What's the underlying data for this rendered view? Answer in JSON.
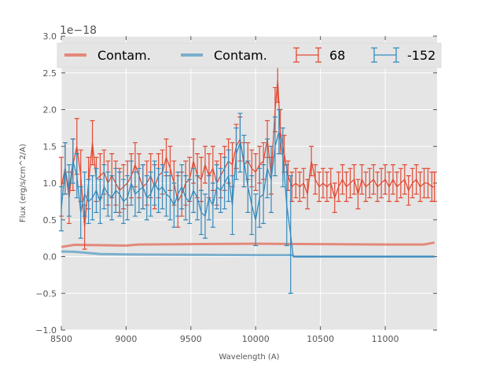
{
  "chart_data": {
    "type": "line",
    "xlabel": "Wavelength (A)",
    "ylabel": "Flux (erg/s/cm^2/A)",
    "offset_text": "1e−18",
    "xlim": [
      8500,
      11400
    ],
    "ylim": [
      -1.0,
      3.0
    ],
    "xticks": [
      "8500",
      "9000",
      "9500",
      "10000",
      "10500",
      "11000"
    ],
    "xtick_values": [
      8500,
      9000,
      9500,
      10000,
      10500,
      11000
    ],
    "yticks": [
      "−1.0",
      "−0.5",
      "0.0",
      "0.5",
      "1.0",
      "1.5",
      "2.0",
      "2.5",
      "3.0"
    ],
    "ytick_values": [
      -1.0,
      -0.5,
      0.0,
      0.5,
      1.0,
      1.5,
      2.0,
      2.5,
      3.0
    ],
    "grid": true,
    "legend_position": "top",
    "legend": [
      "Contam.",
      "Contam.",
      "68",
      "-152"
    ],
    "colors": {
      "red": "#e24a33",
      "blue": "#348abd",
      "bg": "#e5e5e5"
    },
    "series": [
      {
        "name": "Contam.",
        "kind": "contam",
        "color": "#e24a33",
        "points": [
          [
            8500,
            0.13
          ],
          [
            8600,
            0.16
          ],
          [
            8800,
            0.155
          ],
          [
            9000,
            0.15
          ],
          [
            9100,
            0.165
          ],
          [
            9500,
            0.17
          ],
          [
            10000,
            0.175
          ],
          [
            10500,
            0.17
          ],
          [
            11000,
            0.165
          ],
          [
            11300,
            0.165
          ],
          [
            11380,
            0.19
          ]
        ]
      },
      {
        "name": "Contam.",
        "kind": "contam",
        "color": "#348abd",
        "points": [
          [
            8500,
            0.07
          ],
          [
            8600,
            0.065
          ],
          [
            8700,
            0.05
          ],
          [
            8800,
            0.035
          ],
          [
            9000,
            0.03
          ],
          [
            9500,
            0.025
          ],
          [
            10000,
            0.02
          ],
          [
            10280,
            0.02
          ],
          [
            10300,
            0.0
          ],
          [
            11380,
            0.0
          ]
        ]
      },
      {
        "name": "68",
        "kind": "errorbar",
        "color": "#e24a33",
        "points": [
          [
            8500,
            0.95,
            0.4
          ],
          [
            8530,
            1.2,
            0.35
          ],
          [
            8560,
            0.8,
            0.35
          ],
          [
            8590,
            1.25,
            0.35
          ],
          [
            8620,
            1.5,
            0.38
          ],
          [
            8650,
            1.1,
            0.35
          ],
          [
            8680,
            0.4,
            0.3
          ],
          [
            8710,
            1.0,
            0.35
          ],
          [
            8740,
            1.55,
            0.3
          ],
          [
            8770,
            1.05,
            0.3
          ],
          [
            8800,
            1.1,
            0.3
          ],
          [
            8830,
            1.15,
            0.3
          ],
          [
            8860,
            1.0,
            0.3
          ],
          [
            8890,
            1.1,
            0.3
          ],
          [
            8920,
            1.0,
            0.3
          ],
          [
            8950,
            0.9,
            0.3
          ],
          [
            8980,
            0.95,
            0.3
          ],
          [
            9010,
            1.0,
            0.3
          ],
          [
            9040,
            1.1,
            0.3
          ],
          [
            9070,
            1.25,
            0.3
          ],
          [
            9100,
            1.1,
            0.3
          ],
          [
            9130,
            0.95,
            0.3
          ],
          [
            9160,
            1.0,
            0.3
          ],
          [
            9190,
            1.1,
            0.3
          ],
          [
            9220,
            0.95,
            0.3
          ],
          [
            9250,
            1.1,
            0.3
          ],
          [
            9280,
            1.15,
            0.3
          ],
          [
            9310,
            1.35,
            0.25
          ],
          [
            9340,
            1.2,
            0.3
          ],
          [
            9370,
            1.0,
            0.3
          ],
          [
            9400,
            0.75,
            0.35
          ],
          [
            9430,
            0.85,
            0.3
          ],
          [
            9460,
            1.0,
            0.3
          ],
          [
            9490,
            1.05,
            0.3
          ],
          [
            9520,
            1.3,
            0.3
          ],
          [
            9550,
            1.1,
            0.3
          ],
          [
            9580,
            1.05,
            0.3
          ],
          [
            9610,
            1.25,
            0.25
          ],
          [
            9640,
            1.1,
            0.3
          ],
          [
            9670,
            1.2,
            0.3
          ],
          [
            9700,
            1.0,
            0.3
          ],
          [
            9730,
            1.1,
            0.3
          ],
          [
            9760,
            1.2,
            0.3
          ],
          [
            9790,
            1.3,
            0.3
          ],
          [
            9820,
            1.25,
            0.3
          ],
          [
            9850,
            1.5,
            0.3
          ],
          [
            9880,
            1.6,
            0.3
          ],
          [
            9910,
            1.25,
            0.3
          ],
          [
            9940,
            1.3,
            0.25
          ],
          [
            9970,
            1.2,
            0.25
          ],
          [
            10000,
            1.15,
            0.25
          ],
          [
            10030,
            1.25,
            0.25
          ],
          [
            10060,
            1.3,
            0.25
          ],
          [
            10090,
            1.6,
            0.25
          ],
          [
            10120,
            1.1,
            0.25
          ],
          [
            10150,
            2.0,
            0.3
          ],
          [
            10170,
            2.4,
            0.3
          ],
          [
            10190,
            1.7,
            0.3
          ],
          [
            10220,
            1.4,
            0.25
          ],
          [
            10250,
            1.1,
            0.2
          ],
          [
            10280,
            0.95,
            0.2
          ],
          [
            10310,
            1.0,
            0.2
          ],
          [
            10340,
            0.95,
            0.2
          ],
          [
            10370,
            1.0,
            0.2
          ],
          [
            10400,
            0.85,
            0.2
          ],
          [
            10430,
            1.3,
            0.2
          ],
          [
            10460,
            1.05,
            0.2
          ],
          [
            10490,
            0.95,
            0.2
          ],
          [
            10520,
            1.0,
            0.2
          ],
          [
            10550,
            0.95,
            0.2
          ],
          [
            10580,
            1.0,
            0.2
          ],
          [
            10610,
            0.8,
            0.2
          ],
          [
            10640,
            0.95,
            0.2
          ],
          [
            10670,
            1.05,
            0.2
          ],
          [
            10700,
            0.95,
            0.2
          ],
          [
            10730,
            1.0,
            0.2
          ],
          [
            10760,
            1.05,
            0.2
          ],
          [
            10790,
            0.85,
            0.2
          ],
          [
            10820,
            1.05,
            0.2
          ],
          [
            10850,
            0.95,
            0.2
          ],
          [
            10880,
            1.0,
            0.2
          ],
          [
            10910,
            1.05,
            0.2
          ],
          [
            10940,
            0.95,
            0.2
          ],
          [
            10970,
            1.0,
            0.2
          ],
          [
            11000,
            1.05,
            0.2
          ],
          [
            11030,
            0.95,
            0.2
          ],
          [
            11060,
            1.05,
            0.2
          ],
          [
            11090,
            0.95,
            0.2
          ],
          [
            11120,
            1.0,
            0.2
          ],
          [
            11150,
            1.05,
            0.2
          ],
          [
            11180,
            0.9,
            0.2
          ],
          [
            11210,
            1.0,
            0.2
          ],
          [
            11240,
            1.05,
            0.2
          ],
          [
            11270,
            0.95,
            0.2
          ],
          [
            11300,
            1.0,
            0.2
          ],
          [
            11330,
            1.0,
            0.2
          ],
          [
            11360,
            0.95,
            0.2
          ],
          [
            11380,
            0.95,
            0.2
          ]
        ]
      },
      {
        "name": "-152",
        "kind": "errorbar",
        "color": "#348abd",
        "points": [
          [
            8500,
            0.65,
            0.3
          ],
          [
            8530,
            1.2,
            0.35
          ],
          [
            8560,
            0.9,
            0.35
          ],
          [
            8590,
            1.3,
            0.3
          ],
          [
            8620,
            1.1,
            0.3
          ],
          [
            8650,
            0.6,
            0.35
          ],
          [
            8680,
            0.85,
            0.3
          ],
          [
            8710,
            0.75,
            0.3
          ],
          [
            8740,
            0.8,
            0.3
          ],
          [
            8770,
            0.9,
            0.3
          ],
          [
            8800,
            0.75,
            0.3
          ],
          [
            8830,
            0.95,
            0.3
          ],
          [
            8860,
            0.85,
            0.3
          ],
          [
            8890,
            0.8,
            0.3
          ],
          [
            8920,
            0.9,
            0.3
          ],
          [
            8950,
            0.85,
            0.3
          ],
          [
            8980,
            0.75,
            0.3
          ],
          [
            9010,
            0.8,
            0.3
          ],
          [
            9040,
            1.0,
            0.3
          ],
          [
            9070,
            0.85,
            0.3
          ],
          [
            9100,
            0.9,
            0.3
          ],
          [
            9130,
            0.95,
            0.3
          ],
          [
            9160,
            0.8,
            0.3
          ],
          [
            9190,
            0.85,
            0.3
          ],
          [
            9220,
            1.0,
            0.3
          ],
          [
            9250,
            0.9,
            0.3
          ],
          [
            9280,
            0.95,
            0.3
          ],
          [
            9310,
            0.85,
            0.3
          ],
          [
            9340,
            0.8,
            0.3
          ],
          [
            9370,
            0.7,
            0.3
          ],
          [
            9400,
            0.85,
            0.3
          ],
          [
            9430,
            0.95,
            0.3
          ],
          [
            9460,
            0.8,
            0.3
          ],
          [
            9490,
            0.75,
            0.3
          ],
          [
            9520,
            0.9,
            0.3
          ],
          [
            9550,
            0.8,
            0.3
          ],
          [
            9580,
            0.6,
            0.3
          ],
          [
            9610,
            0.55,
            0.3
          ],
          [
            9640,
            0.8,
            0.3
          ],
          [
            9670,
            0.7,
            0.3
          ],
          [
            9700,
            0.95,
            0.3
          ],
          [
            9730,
            0.9,
            0.3
          ],
          [
            9760,
            1.0,
            0.35
          ],
          [
            9790,
            1.1,
            0.35
          ],
          [
            9820,
            0.7,
            0.4
          ],
          [
            9850,
            1.4,
            0.35
          ],
          [
            9880,
            1.55,
            0.4
          ],
          [
            9910,
            1.3,
            0.35
          ],
          [
            9940,
            0.95,
            0.35
          ],
          [
            9970,
            0.7,
            0.4
          ],
          [
            10000,
            0.5,
            0.35
          ],
          [
            10030,
            0.8,
            0.4
          ],
          [
            10060,
            0.85,
            0.4
          ],
          [
            10090,
            1.2,
            0.4
          ],
          [
            10120,
            1.05,
            0.45
          ],
          [
            10150,
            1.5,
            0.4
          ],
          [
            10180,
            1.7,
            0.3
          ],
          [
            10210,
            1.35,
            0.4
          ],
          [
            10240,
            0.7,
            0.55
          ],
          [
            10270,
            0.3,
            0.8
          ],
          [
            10290,
            0.0,
            0.0
          ],
          [
            10500,
            0.0,
            0.0
          ],
          [
            11000,
            0.0,
            0.0
          ],
          [
            11380,
            0.0,
            0.0
          ]
        ]
      }
    ]
  }
}
